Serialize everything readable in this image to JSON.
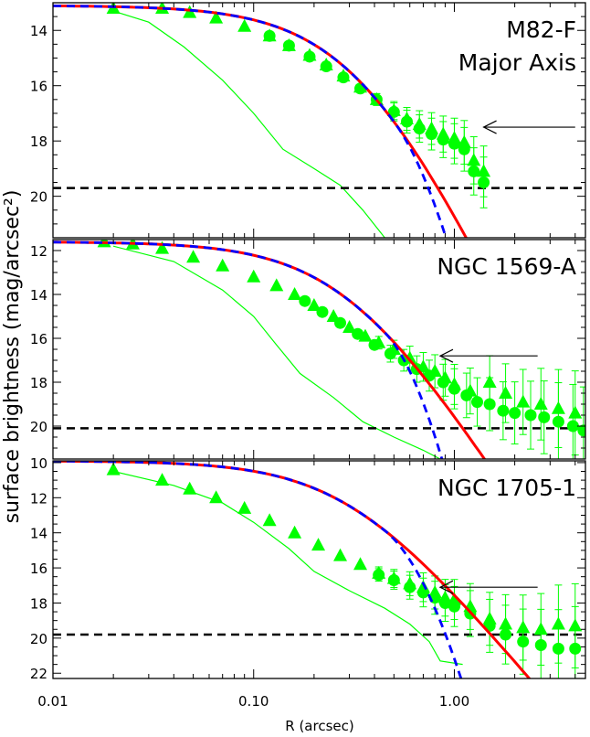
{
  "figure": {
    "ylabel": "surface brightness (mag/arcsec²)",
    "xlabel": "R (arcsec)",
    "xticks": [
      0.01,
      0.1,
      1.0
    ],
    "xtick_labels": [
      "0.01",
      "0.10",
      "1.00"
    ],
    "xlim": [
      0.01,
      4.5
    ],
    "xscale": "log"
  },
  "chart_data": [
    {
      "type": "scatter",
      "label_lines": [
        "M82-F",
        "Major Axis"
      ],
      "ylim": [
        21.5,
        13.0
      ],
      "yticks": [
        14,
        16,
        18,
        20
      ],
      "limit_line": 19.7,
      "arrow": {
        "x_tail": 4.0,
        "x_head": 1.4,
        "y": 17.5
      },
      "series": [
        {
          "kind": "triangles",
          "color": "#00ff00",
          "points": [
            [
              0.02,
              13.2
            ],
            [
              0.035,
              13.2
            ],
            [
              0.048,
              13.35
            ],
            [
              0.065,
              13.55
            ],
            [
              0.09,
              13.85
            ],
            [
              0.12,
              14.2
            ],
            [
              0.15,
              14.55
            ],
            [
              0.19,
              14.9
            ],
            [
              0.23,
              15.25
            ],
            [
              0.28,
              15.65
            ],
            [
              0.34,
              16.05
            ],
            [
              0.41,
              16.5
            ],
            [
              0.5,
              16.9
            ],
            [
              0.58,
              17.2
            ],
            [
              0.67,
              17.4
            ],
            [
              0.77,
              17.55
            ],
            [
              0.88,
              17.75
            ],
            [
              1.0,
              17.9
            ],
            [
              1.12,
              18.05
            ],
            [
              1.25,
              18.7
            ],
            [
              1.4,
              19.1
            ]
          ]
        },
        {
          "kind": "circles",
          "color": "#00ff00",
          "points": [
            [
              0.12,
              14.2
            ],
            [
              0.15,
              14.55
            ],
            [
              0.19,
              14.95
            ],
            [
              0.23,
              15.3
            ],
            [
              0.28,
              15.7
            ],
            [
              0.34,
              16.1
            ],
            [
              0.41,
              16.5
            ],
            [
              0.5,
              16.95
            ],
            [
              0.58,
              17.3
            ],
            [
              0.67,
              17.55
            ],
            [
              0.77,
              17.75
            ],
            [
              0.88,
              17.95
            ],
            [
              1.0,
              18.1
            ],
            [
              1.12,
              18.3
            ],
            [
              1.25,
              19.1
            ],
            [
              1.4,
              19.5
            ]
          ]
        },
        {
          "kind": "psf",
          "color": "#00ff00",
          "points": [
            [
              0.02,
              13.3
            ],
            [
              0.03,
              13.7
            ],
            [
              0.045,
              14.6
            ],
            [
              0.07,
              15.8
            ],
            [
              0.1,
              17.0
            ],
            [
              0.14,
              18.3
            ],
            [
              0.2,
              19.0
            ],
            [
              0.27,
              19.6
            ],
            [
              0.35,
              20.5
            ],
            [
              0.45,
              21.5
            ]
          ]
        },
        {
          "kind": "fit",
          "color": "#ff0000",
          "x0": 0.35,
          "mu0": 13.1,
          "slope": 8.0,
          "x_end": 2.5
        },
        {
          "kind": "dashed-fit",
          "color": "#0000ff",
          "x0": 0.35,
          "mu0": 13.1,
          "slope": 8.0,
          "x_break": 0.5,
          "curv": 3.2,
          "x_end": 2.0
        }
      ]
    },
    {
      "type": "scatter",
      "label_lines": [
        "NGC 1569-A"
      ],
      "ylim": [
        21.5,
        11.5
      ],
      "yticks": [
        12,
        14,
        16,
        18,
        20
      ],
      "limit_line": 20.1,
      "arrow": {
        "x_tail": 2.6,
        "x_head": 0.85,
        "y": 16.8
      },
      "series": [
        {
          "kind": "triangles",
          "color": "#00ff00",
          "points": [
            [
              0.018,
              11.6
            ],
            [
              0.025,
              11.7
            ],
            [
              0.035,
              11.9
            ],
            [
              0.05,
              12.3
            ],
            [
              0.07,
              12.7
            ],
            [
              0.1,
              13.2
            ],
            [
              0.13,
              13.6
            ],
            [
              0.16,
              14.0
            ],
            [
              0.2,
              14.5
            ],
            [
              0.25,
              15.0
            ],
            [
              0.3,
              15.5
            ],
            [
              0.36,
              15.9
            ],
            [
              0.42,
              16.2
            ],
            [
              0.5,
              16.5
            ],
            [
              0.6,
              16.9
            ],
            [
              0.7,
              17.3
            ],
            [
              0.8,
              17.5
            ],
            [
              0.9,
              17.8
            ],
            [
              1.0,
              18.1
            ],
            [
              1.2,
              18.4
            ],
            [
              1.5,
              18.0
            ],
            [
              1.8,
              18.5
            ],
            [
              2.2,
              18.9
            ],
            [
              2.7,
              19.0
            ],
            [
              3.3,
              19.2
            ],
            [
              4.0,
              19.4
            ]
          ]
        },
        {
          "kind": "circles",
          "color": "#00ff00",
          "points": [
            [
              0.18,
              14.3
            ],
            [
              0.22,
              14.8
            ],
            [
              0.27,
              15.3
            ],
            [
              0.33,
              15.8
            ],
            [
              0.4,
              16.3
            ],
            [
              0.48,
              16.7
            ],
            [
              0.56,
              17.0
            ],
            [
              0.65,
              17.4
            ],
            [
              0.75,
              17.7
            ],
            [
              0.88,
              18.0
            ],
            [
              1.0,
              18.3
            ],
            [
              1.15,
              18.6
            ],
            [
              1.3,
              18.9
            ],
            [
              1.5,
              19.0
            ],
            [
              1.75,
              19.3
            ],
            [
              2.0,
              19.4
            ],
            [
              2.4,
              19.5
            ],
            [
              2.8,
              19.6
            ],
            [
              3.3,
              19.8
            ],
            [
              3.9,
              20.0
            ],
            [
              4.4,
              20.2
            ]
          ]
        },
        {
          "kind": "psf",
          "color": "#00ff00",
          "points": [
            [
              0.02,
              11.8
            ],
            [
              0.04,
              12.5
            ],
            [
              0.07,
              13.8
            ],
            [
              0.1,
              15.0
            ],
            [
              0.13,
              16.3
            ],
            [
              0.17,
              17.6
            ],
            [
              0.25,
              18.7
            ],
            [
              0.35,
              19.8
            ],
            [
              0.5,
              20.5
            ],
            [
              0.7,
              21.1
            ],
            [
              0.85,
              21.5
            ]
          ]
        },
        {
          "kind": "fit",
          "color": "#ff0000",
          "x0": 0.3,
          "mu0": 11.6,
          "slope": 7.5,
          "x_end": 2.3
        },
        {
          "kind": "dashed-fit",
          "color": "#0000ff",
          "x0": 0.3,
          "mu0": 11.6,
          "slope": 7.5,
          "x_break": 0.45,
          "curv": 5.5,
          "x_end": 0.92
        }
      ]
    },
    {
      "type": "scatter",
      "label_lines": [
        "NGC 1705-1"
      ],
      "ylim": [
        22.3,
        9.9
      ],
      "yticks": [
        10,
        12,
        14,
        16,
        18,
        20,
        22
      ],
      "limit_line": 19.8,
      "arrow": {
        "x_tail": 2.6,
        "x_head": 0.85,
        "y": 17.1
      },
      "series": [
        {
          "kind": "triangles",
          "color": "#00ff00",
          "points": [
            [
              0.02,
              10.4
            ],
            [
              0.035,
              11.0
            ],
            [
              0.048,
              11.5
            ],
            [
              0.065,
              12.0
            ],
            [
              0.09,
              12.6
            ],
            [
              0.12,
              13.3
            ],
            [
              0.16,
              14.0
            ],
            [
              0.21,
              14.7
            ],
            [
              0.27,
              15.3
            ],
            [
              0.34,
              15.8
            ],
            [
              0.42,
              16.3
            ],
            [
              0.5,
              16.6
            ],
            [
              0.6,
              16.9
            ],
            [
              0.7,
              17.1
            ],
            [
              0.8,
              17.4
            ],
            [
              0.9,
              17.7
            ],
            [
              1.0,
              17.8
            ],
            [
              1.2,
              18.2
            ],
            [
              1.5,
              18.9
            ],
            [
              1.8,
              19.2
            ],
            [
              2.2,
              19.4
            ],
            [
              2.7,
              19.5
            ],
            [
              3.3,
              19.2
            ],
            [
              4.0,
              19.3
            ]
          ]
        },
        {
          "kind": "circles",
          "color": "#00ff00",
          "points": [
            [
              0.42,
              16.4
            ],
            [
              0.5,
              16.7
            ],
            [
              0.6,
              17.1
            ],
            [
              0.7,
              17.4
            ],
            [
              0.8,
              17.7
            ],
            [
              0.9,
              18.0
            ],
            [
              1.0,
              18.2
            ],
            [
              1.2,
              18.6
            ],
            [
              1.5,
              19.3
            ],
            [
              1.8,
              19.8
            ],
            [
              2.2,
              20.2
            ],
            [
              2.7,
              20.4
            ],
            [
              3.3,
              20.6
            ],
            [
              4.0,
              20.6
            ]
          ]
        },
        {
          "kind": "psf",
          "color": "#00ff00",
          "points": [
            [
              0.02,
              10.5
            ],
            [
              0.04,
              11.3
            ],
            [
              0.07,
              12.3
            ],
            [
              0.1,
              13.4
            ],
            [
              0.15,
              14.9
            ],
            [
              0.2,
              16.2
            ],
            [
              0.3,
              17.3
            ],
            [
              0.45,
              18.3
            ],
            [
              0.6,
              19.2
            ],
            [
              0.75,
              20.2
            ],
            [
              0.85,
              21.3
            ],
            [
              1.1,
              21.5
            ]
          ]
        },
        {
          "kind": "fit",
          "color": "#ff0000",
          "x0": 0.3,
          "mu0": 9.9,
          "slope": 7.2,
          "x_end": 2.5
        },
        {
          "kind": "dashed-fit",
          "color": "#0000ff",
          "x0": 0.3,
          "mu0": 9.9,
          "slope": 7.2,
          "x_break": 0.45,
          "curv": 5.0,
          "x_end": 1.2
        }
      ]
    }
  ]
}
